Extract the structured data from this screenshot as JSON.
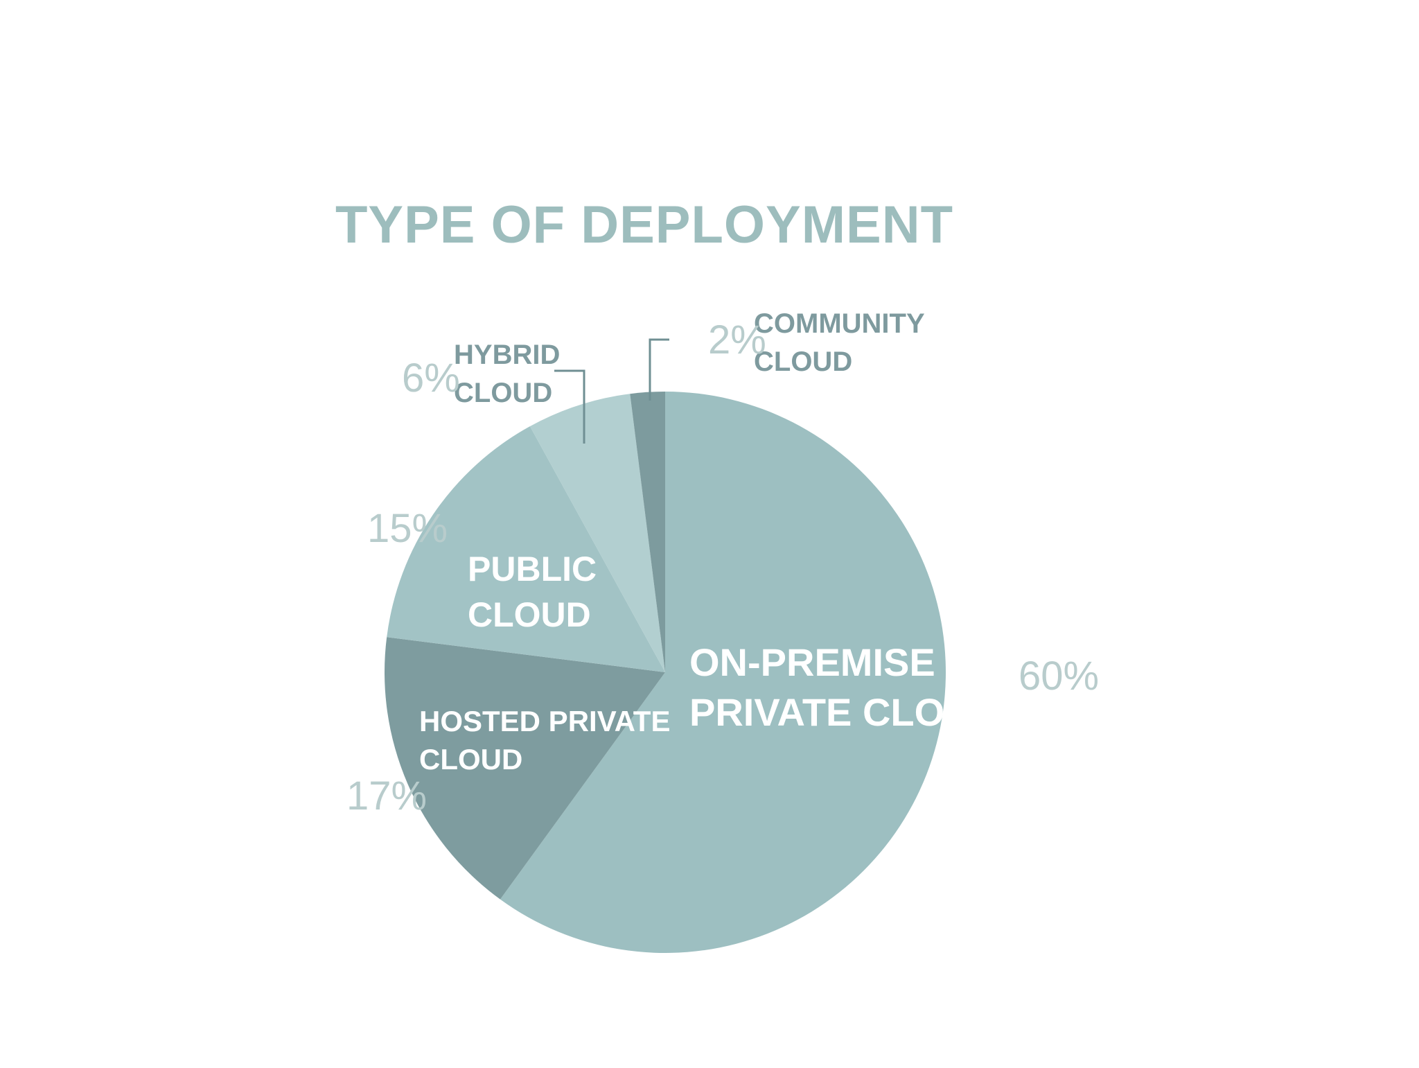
{
  "chart_data": {
    "type": "pie",
    "title": "TYPE OF DEPLOYMENT",
    "slices": [
      {
        "label_lines": [
          "ON-PREMISE",
          "PRIVATE CLOUD"
        ],
        "value": 60,
        "value_label": "60%",
        "color": "#9dbfc1"
      },
      {
        "label_lines": [
          "HOSTED PRIVATE",
          "CLOUD"
        ],
        "value": 17,
        "value_label": "17%",
        "color": "#7e9c9f"
      },
      {
        "label_lines": [
          "PUBLIC",
          "CLOUD"
        ],
        "value": 15,
        "value_label": "15%",
        "color": "#a2c3c5"
      },
      {
        "label_lines": [
          "HYBRID",
          "CLOUD"
        ],
        "value": 6,
        "value_label": "6%",
        "color": "#b2cfd0"
      },
      {
        "label_lines": [
          "COMMUNITY",
          "CLOUD"
        ],
        "value": 2,
        "value_label": "2%",
        "color": "#7d9b9e"
      }
    ],
    "start_angle_deg": 0,
    "direction": "clockwise"
  }
}
